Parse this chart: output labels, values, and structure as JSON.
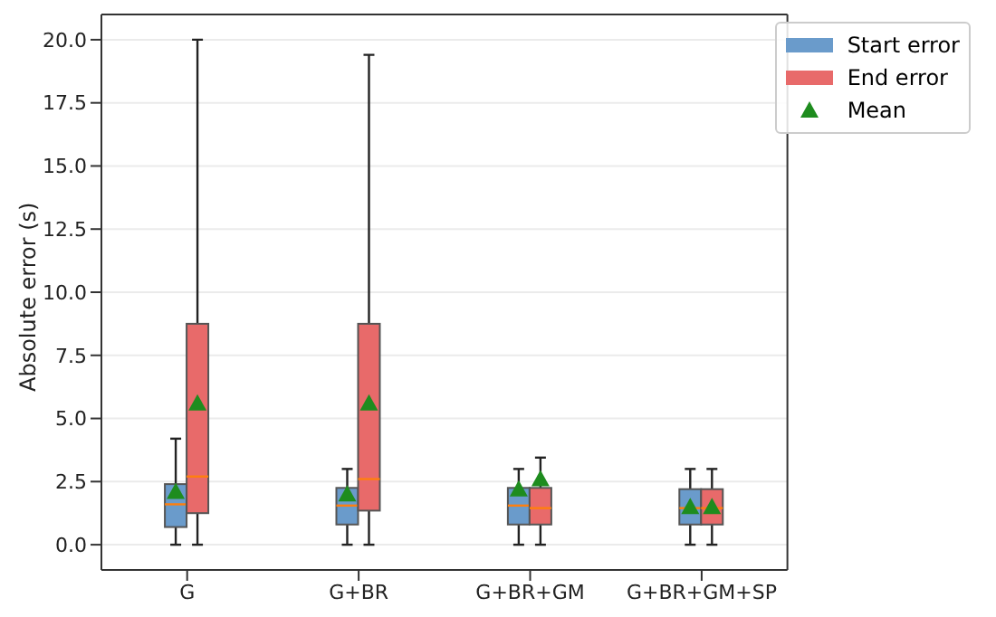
{
  "chart_data": {
    "type": "box",
    "ylabel": "Absolute error (s)",
    "categories": [
      "G",
      "G+BR",
      "G+BR+GM",
      "G+BR+GM+SP"
    ],
    "ylim": [
      -1,
      21
    ],
    "yticks": [
      {
        "value": 0,
        "label": "0.0"
      },
      {
        "value": 2.5,
        "label": "2.5"
      },
      {
        "value": 5,
        "label": "5.0"
      },
      {
        "value": 7.5,
        "label": "7.5"
      },
      {
        "value": 10,
        "label": "10.0"
      },
      {
        "value": 12.5,
        "label": "12.5"
      },
      {
        "value": 15,
        "label": "15.0"
      },
      {
        "value": 17.5,
        "label": "17.5"
      },
      {
        "value": 20,
        "label": "20.0"
      }
    ],
    "grid": "y",
    "legend": "top right",
    "series": [
      {
        "name": "Start error",
        "color": "#6a9bcb",
        "boxes": [
          {
            "low": 0,
            "q1": 0.7,
            "median": 1.6,
            "q3": 2.4,
            "high": 4.2
          },
          {
            "low": 0,
            "q1": 0.8,
            "median": 1.55,
            "q3": 2.25,
            "high": 3.0
          },
          {
            "low": 0,
            "q1": 0.8,
            "median": 1.55,
            "q3": 2.25,
            "high": 3.0
          },
          {
            "low": 0,
            "q1": 0.8,
            "median": 1.45,
            "q3": 2.2,
            "high": 3.0
          }
        ]
      },
      {
        "name": "End error",
        "color": "#e86a6a",
        "boxes": [
          {
            "low": 0,
            "q1": 1.25,
            "median": 2.7,
            "q3": 8.75,
            "high": 20.0
          },
          {
            "low": 0,
            "q1": 1.35,
            "median": 2.6,
            "q3": 8.75,
            "high": 19.4
          },
          {
            "low": 0,
            "q1": 0.8,
            "median": 1.45,
            "q3": 2.25,
            "high": 3.45
          },
          {
            "low": 0,
            "q1": 0.8,
            "median": 1.45,
            "q3": 2.2,
            "high": 3.0
          }
        ]
      },
      {
        "name": "Mean",
        "type": "scatter",
        "color": "#1e8c1e",
        "marker": "triangle",
        "x": [
          "G",
          "G",
          "G+BR",
          "G+BR",
          "G+BR+GM",
          "G+BR+GM",
          "G+BR+GM+SP",
          "G+BR+GM+SP"
        ],
        "values": [
          2.1,
          5.6,
          2.0,
          5.6,
          2.2,
          2.6,
          1.5,
          1.5
        ]
      }
    ]
  }
}
